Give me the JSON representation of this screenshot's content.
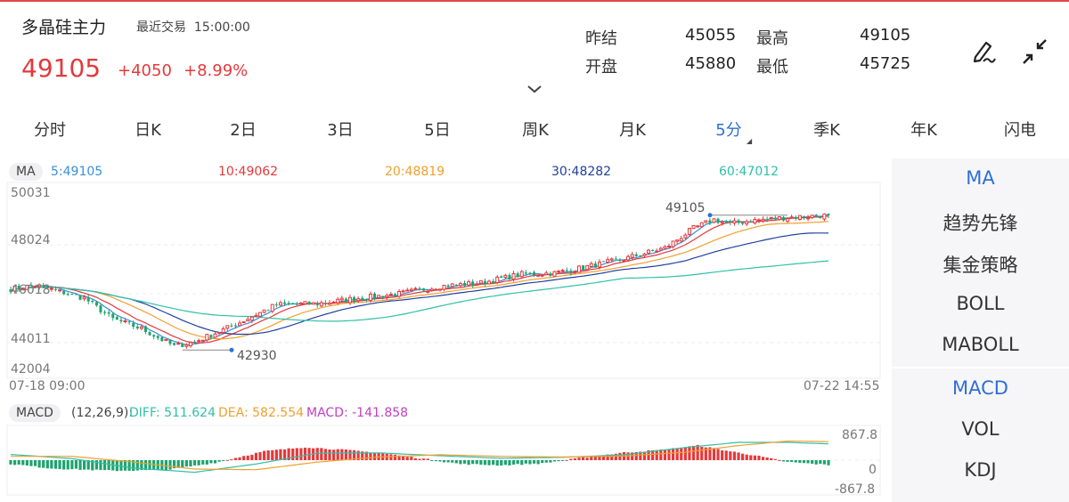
{
  "header": {
    "title": "多晶硅主力",
    "status": "最近交易",
    "time": "15:00:00",
    "price": "49105",
    "change": "+4050",
    "change_pct": "+8.99%",
    "stats": [
      {
        "label": "昨结",
        "value": "45055"
      },
      {
        "label": "最高",
        "value": "49105"
      },
      {
        "label": "开盘",
        "value": "45880"
      },
      {
        "label": "最低",
        "value": "45725"
      }
    ]
  },
  "icons": [
    "edit-icon",
    "collapse-icon",
    "chevron-down-icon"
  ],
  "tabs": [
    {
      "label": "分时",
      "active": false
    },
    {
      "label": "日K",
      "active": false
    },
    {
      "label": "2日",
      "active": false
    },
    {
      "label": "3日",
      "active": false
    },
    {
      "label": "5日",
      "active": false
    },
    {
      "label": "周K",
      "active": false
    },
    {
      "label": "月K",
      "active": false
    },
    {
      "label": "5分",
      "active": true
    },
    {
      "label": "季K",
      "active": false
    },
    {
      "label": "年K",
      "active": false
    },
    {
      "label": "闪电",
      "active": false
    }
  ],
  "ma_legend": {
    "label": "MA",
    "items": [
      {
        "text": "5:49105",
        "color": "#3a8fd8"
      },
      {
        "text": "10:49062",
        "color": "#e5383b"
      },
      {
        "text": "20:48819",
        "color": "#f0a030"
      },
      {
        "text": "30:48282",
        "color": "#2040a0"
      },
      {
        "text": "60:47012",
        "color": "#30c0a8"
      }
    ]
  },
  "price_axis": [
    "50031",
    "48024",
    "46018",
    "44011",
    "42004"
  ],
  "time_axis": {
    "start": "07-18 09:00",
    "end": "07-22 14:55"
  },
  "markers": {
    "high": "49105",
    "low": "42930"
  },
  "macd_legend": {
    "label": "MACD",
    "params": "(12,26,9):",
    "diff": "DIFF: 511.624",
    "dea": "DEA: 582.554",
    "macd": "MACD: -141.858"
  },
  "macd_axis": [
    "867.8",
    "0",
    "-867.8"
  ],
  "side_menu": {
    "main": [
      {
        "label": "MA",
        "active": true
      },
      {
        "label": "趋势先锋",
        "active": false
      },
      {
        "label": "集金策略",
        "active": false
      },
      {
        "label": "BOLL",
        "active": false
      },
      {
        "label": "MABOLL",
        "active": false
      }
    ],
    "sub": [
      {
        "label": "MACD",
        "active": true
      },
      {
        "label": "VOL",
        "active": false
      },
      {
        "label": "KDJ",
        "active": false
      }
    ]
  },
  "colors": {
    "up": "#e5383b",
    "down": "#1fa36f",
    "accent": "#2f6fd6",
    "diff": "#30c0a8",
    "dea": "#f0a030",
    "macd": "#c040c0"
  },
  "chart_data": {
    "type": "candlestick",
    "ylim": [
      42004,
      50031
    ],
    "close_anchors": [
      [
        0,
        45720
      ],
      [
        6,
        45900
      ],
      [
        12,
        45600
      ],
      [
        18,
        45300
      ],
      [
        25,
        44350
      ],
      [
        32,
        43900
      ],
      [
        40,
        43100
      ],
      [
        45,
        43300
      ],
      [
        55,
        44100
      ],
      [
        65,
        45000
      ],
      [
        75,
        45050
      ],
      [
        85,
        45300
      ],
      [
        95,
        45500
      ],
      [
        105,
        45850
      ],
      [
        115,
        46000
      ],
      [
        125,
        46400
      ],
      [
        133,
        46450
      ],
      [
        140,
        46700
      ],
      [
        150,
        47100
      ],
      [
        160,
        47600
      ],
      [
        167,
        48500
      ],
      [
        172,
        48900
      ],
      [
        176,
        48700
      ],
      [
        181,
        48850
      ],
      [
        190,
        49000
      ],
      [
        200,
        49100
      ]
    ],
    "ma_end_values": {
      "ma5": 49105,
      "ma10": 49062,
      "ma20": 48819,
      "ma30": 48282,
      "ma60": 47012
    },
    "macd_ylim": [
      -867.8,
      867.8
    ],
    "macd_hist_anchors": [
      [
        0,
        -120
      ],
      [
        10,
        -260
      ],
      [
        25,
        -330
      ],
      [
        38,
        -310
      ],
      [
        50,
        -80
      ],
      [
        62,
        280
      ],
      [
        72,
        410
      ],
      [
        82,
        320
      ],
      [
        92,
        200
      ],
      [
        100,
        60
      ],
      [
        110,
        -120
      ],
      [
        120,
        -160
      ],
      [
        130,
        -100
      ],
      [
        140,
        80
      ],
      [
        150,
        240
      ],
      [
        160,
        330
      ],
      [
        168,
        460
      ],
      [
        175,
        300
      ],
      [
        182,
        150
      ],
      [
        190,
        -60
      ],
      [
        200,
        -150
      ]
    ],
    "macd_end": {
      "diff": 511.624,
      "dea": 582.554,
      "macd": -141.858
    }
  }
}
